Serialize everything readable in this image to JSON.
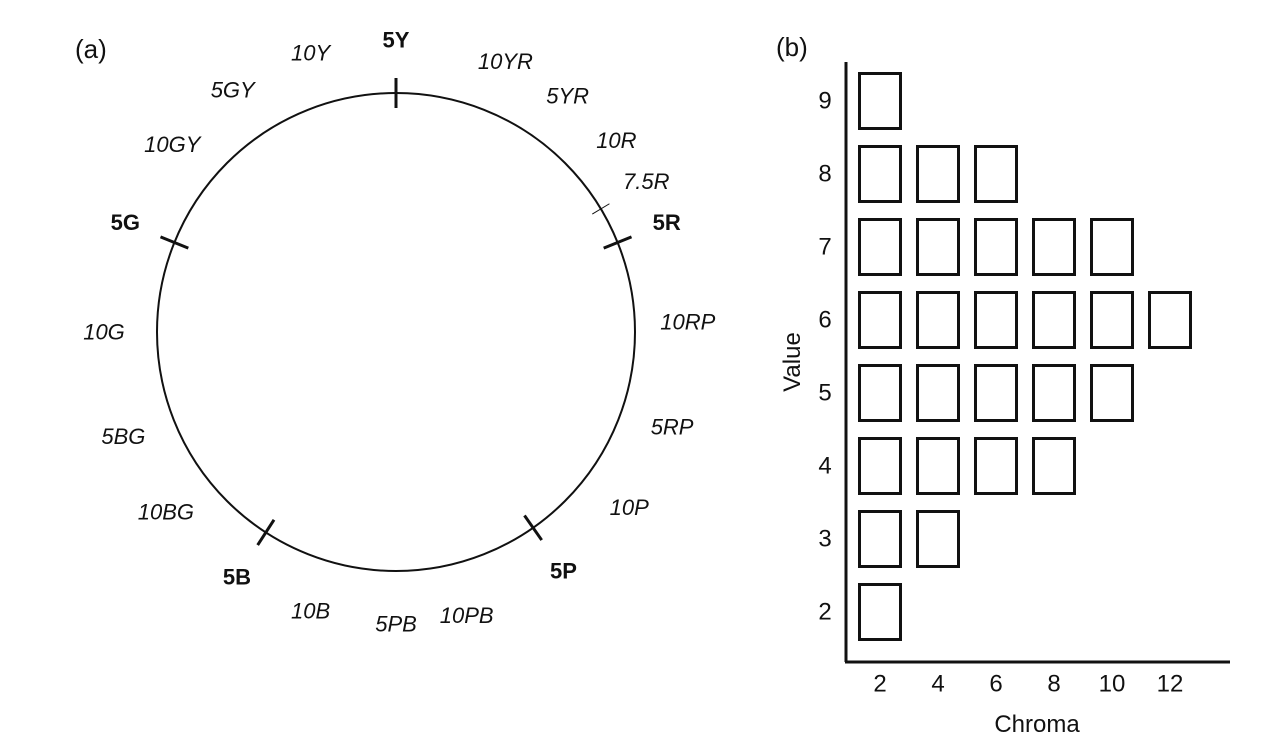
{
  "panel_a": {
    "label": "(a)",
    "hues": [
      {
        "text": "5Y",
        "deg": 0,
        "major": true
      },
      {
        "text": "10YR",
        "deg": 22,
        "major": false
      },
      {
        "text": "5YR",
        "deg": 36,
        "major": false
      },
      {
        "text": "10R",
        "deg": 49,
        "major": false
      },
      {
        "text": "7.5R",
        "deg": 59,
        "major": false,
        "reference_tick": true
      },
      {
        "text": "5R",
        "deg": 68,
        "major": true
      },
      {
        "text": "10RP",
        "deg": 88,
        "major": false
      },
      {
        "text": "5RP",
        "deg": 109,
        "major": false
      },
      {
        "text": "10P",
        "deg": 127,
        "major": false
      },
      {
        "text": "5P",
        "deg": 145,
        "major": true
      },
      {
        "text": "10PB",
        "deg": 166,
        "major": false
      },
      {
        "text": "5PB",
        "deg": 180,
        "major": false
      },
      {
        "text": "10B",
        "deg": 197,
        "major": false
      },
      {
        "text": "5B",
        "deg": 213,
        "major": true
      },
      {
        "text": "10BG",
        "deg": 232,
        "major": false
      },
      {
        "text": "5BG",
        "deg": 249,
        "major": false
      },
      {
        "text": "10G",
        "deg": 270,
        "major": false
      },
      {
        "text": "5G",
        "deg": 292,
        "major": true
      },
      {
        "text": "10GY",
        "deg": 310,
        "major": false
      },
      {
        "text": "5GY",
        "deg": 326,
        "major": false
      },
      {
        "text": "10Y",
        "deg": 343,
        "major": false
      }
    ]
  },
  "panel_b": {
    "label": "(b)",
    "xlabel": "Chroma",
    "ylabel": "Value",
    "x_ticks": [
      2,
      4,
      6,
      8,
      10,
      12
    ],
    "y_ticks": [
      2,
      3,
      4,
      5,
      6,
      7,
      8,
      9
    ],
    "rows": [
      {
        "value": 9,
        "max_chroma": 2
      },
      {
        "value": 8,
        "max_chroma": 6
      },
      {
        "value": 7,
        "max_chroma": 10
      },
      {
        "value": 6,
        "max_chroma": 12
      },
      {
        "value": 5,
        "max_chroma": 10
      },
      {
        "value": 4,
        "max_chroma": 8
      },
      {
        "value": 3,
        "max_chroma": 4
      },
      {
        "value": 2,
        "max_chroma": 2
      }
    ]
  }
}
